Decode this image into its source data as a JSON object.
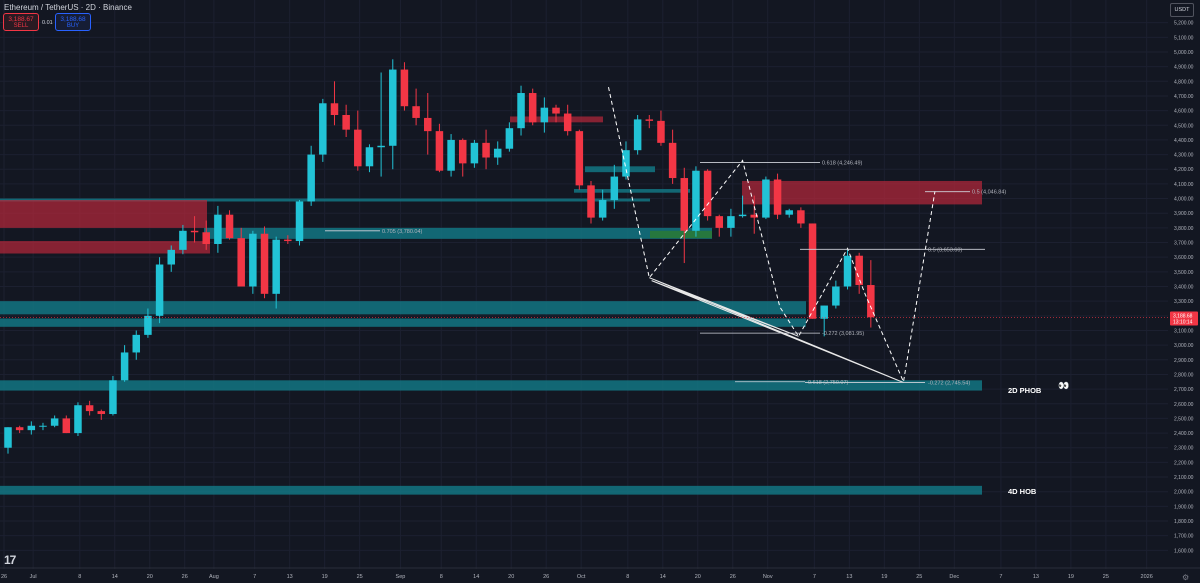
{
  "header": {
    "symbol_line": "Ethereum / TetherUS · 2D · Binance",
    "sell_price": "3,188.67",
    "sell_label": "SELL",
    "spread": "0.01",
    "buy_price": "3,188.68",
    "buy_label": "BUY",
    "currency": "USDT"
  },
  "colors": {
    "background": "#131722",
    "up": "#22c3d6",
    "down": "#f23645",
    "zone_teal": "#137583",
    "zone_red": "#b8283a",
    "zone_green": "#2a7a35"
  },
  "chart_data": {
    "type": "candlestick",
    "ylim": [
      1500,
      5300
    ],
    "y_ticks": [
      1600,
      1700,
      1800,
      1900,
      2000,
      2100,
      2200,
      2300,
      2400,
      2500,
      2600,
      2700,
      2800,
      2900,
      3000,
      3100,
      3200,
      3300,
      3400,
      3500,
      3600,
      3700,
      3800,
      3900,
      4000,
      4100,
      4200,
      4300,
      4400,
      4500,
      4600,
      4700,
      4800,
      4900,
      5000,
      5100,
      5200
    ],
    "x_ticks": [
      {
        "label": "26",
        "slot": 0
      },
      {
        "label": "Jul",
        "slot": 2.5
      },
      {
        "label": "8",
        "slot": 6.5
      },
      {
        "label": "14",
        "slot": 9.5
      },
      {
        "label": "20",
        "slot": 12.5
      },
      {
        "label": "26",
        "slot": 15.5
      },
      {
        "label": "Aug",
        "slot": 18
      },
      {
        "label": "7",
        "slot": 21.5
      },
      {
        "label": "13",
        "slot": 24.5
      },
      {
        "label": "19",
        "slot": 27.5
      },
      {
        "label": "25",
        "slot": 30.5
      },
      {
        "label": "Sep",
        "slot": 34
      },
      {
        "label": "8",
        "slot": 37.5
      },
      {
        "label": "14",
        "slot": 40.5
      },
      {
        "label": "20",
        "slot": 43.5
      },
      {
        "label": "26",
        "slot": 46.5
      },
      {
        "label": "Oct",
        "slot": 49.5
      },
      {
        "label": "8",
        "slot": 53.5
      },
      {
        "label": "14",
        "slot": 56.5
      },
      {
        "label": "20",
        "slot": 59.5
      },
      {
        "label": "26",
        "slot": 62.5
      },
      {
        "label": "Nov",
        "slot": 65.5
      },
      {
        "label": "7",
        "slot": 69.5
      },
      {
        "label": "13",
        "slot": 72.5
      },
      {
        "label": "19",
        "slot": 75.5
      },
      {
        "label": "25",
        "slot": 78.5
      },
      {
        "label": "Dec",
        "slot": 81.5
      },
      {
        "label": "7",
        "slot": 85.5
      },
      {
        "label": "13",
        "slot": 88.5
      },
      {
        "label": "19",
        "slot": 91.5
      },
      {
        "label": "25",
        "slot": 94.5
      },
      {
        "label": "2026",
        "slot": 98
      }
    ],
    "candles": [
      [
        2300,
        2440,
        2260,
        2440
      ],
      [
        2440,
        2450,
        2400,
        2420
      ],
      [
        2420,
        2480,
        2390,
        2450
      ],
      [
        2450,
        2470,
        2420,
        2450
      ],
      [
        2450,
        2520,
        2440,
        2500
      ],
      [
        2500,
        2520,
        2400,
        2400
      ],
      [
        2400,
        2610,
        2380,
        2590
      ],
      [
        2590,
        2620,
        2520,
        2550
      ],
      [
        2550,
        2560,
        2490,
        2530
      ],
      [
        2530,
        2790,
        2520,
        2760
      ],
      [
        2760,
        3000,
        2750,
        2950
      ],
      [
        2950,
        3100,
        2900,
        3070
      ],
      [
        3070,
        3250,
        3050,
        3200
      ],
      [
        3200,
        3600,
        3150,
        3550
      ],
      [
        3550,
        3680,
        3500,
        3650
      ],
      [
        3650,
        3820,
        3620,
        3780
      ],
      [
        3780,
        3880,
        3700,
        3770
      ],
      [
        3770,
        3850,
        3650,
        3690
      ],
      [
        3690,
        3950,
        3630,
        3890
      ],
      [
        3890,
        3920,
        3720,
        3730
      ],
      [
        3730,
        3800,
        3400,
        3400
      ],
      [
        3400,
        3780,
        3350,
        3760
      ],
      [
        3760,
        3810,
        3320,
        3350
      ],
      [
        3350,
        3740,
        3250,
        3720
      ],
      [
        3720,
        3750,
        3690,
        3710
      ],
      [
        3710,
        3990,
        3680,
        3980
      ],
      [
        3980,
        4360,
        3950,
        4300
      ],
      [
        4300,
        4680,
        4250,
        4650
      ],
      [
        4650,
        4800,
        4500,
        4570
      ],
      [
        4570,
        4640,
        4420,
        4470
      ],
      [
        4470,
        4600,
        4190,
        4220
      ],
      [
        4220,
        4370,
        4180,
        4350
      ],
      [
        4350,
        4860,
        4150,
        4360
      ],
      [
        4360,
        4950,
        4200,
        4880
      ],
      [
        4880,
        4930,
        4600,
        4630
      ],
      [
        4630,
        4750,
        4500,
        4550
      ],
      [
        4550,
        4720,
        4300,
        4460
      ],
      [
        4460,
        4510,
        4180,
        4190
      ],
      [
        4190,
        4440,
        4150,
        4400
      ],
      [
        4400,
        4410,
        4150,
        4240
      ],
      [
        4240,
        4400,
        4210,
        4380
      ],
      [
        4380,
        4470,
        4200,
        4280
      ],
      [
        4280,
        4390,
        4230,
        4340
      ],
      [
        4340,
        4520,
        4320,
        4480
      ],
      [
        4480,
        4770,
        4430,
        4720
      ],
      [
        4720,
        4750,
        4500,
        4520
      ],
      [
        4520,
        4690,
        4450,
        4620
      ],
      [
        4620,
        4640,
        4520,
        4580
      ],
      [
        4580,
        4640,
        4430,
        4460
      ],
      [
        4460,
        4470,
        4060,
        4090
      ],
      [
        4090,
        4120,
        3830,
        3870
      ],
      [
        3870,
        4060,
        3850,
        3990
      ],
      [
        3990,
        4230,
        3930,
        4150
      ],
      [
        4150,
        4390,
        4130,
        4330
      ],
      [
        4330,
        4570,
        4300,
        4540
      ],
      [
        4540,
        4570,
        4480,
        4530
      ],
      [
        4530,
        4600,
        4360,
        4380
      ],
      [
        4380,
        4470,
        4100,
        4140
      ],
      [
        4140,
        4210,
        3560,
        3780
      ],
      [
        3780,
        4220,
        3740,
        4190
      ],
      [
        4190,
        4200,
        3850,
        3880
      ],
      [
        3880,
        3890,
        3740,
        3800
      ],
      [
        3800,
        3930,
        3740,
        3880
      ],
      [
        3880,
        4020,
        3870,
        3890
      ],
      [
        3890,
        4020,
        3760,
        3870
      ],
      [
        3870,
        4150,
        3860,
        4130
      ],
      [
        4130,
        4170,
        3860,
        3890
      ],
      [
        3890,
        3930,
        3870,
        3920
      ],
      [
        3920,
        3940,
        3800,
        3830
      ],
      [
        3830,
        3830,
        3180,
        3180
      ],
      [
        3180,
        3270,
        3060,
        3270
      ],
      [
        3270,
        3440,
        3250,
        3400
      ],
      [
        3400,
        3650,
        3380,
        3610
      ],
      [
        3610,
        3630,
        3350,
        3410
      ],
      [
        3410,
        3580,
        3120,
        3190
      ]
    ],
    "zones": [
      {
        "type": "teal",
        "from": 3125,
        "to": 3182
      },
      {
        "type": "teal",
        "from": 3210,
        "to": 3300
      },
      {
        "type": "teal",
        "from": 2690,
        "to": 2760
      },
      {
        "type": "teal",
        "from": 1980,
        "to": 2040
      },
      {
        "type": "teal",
        "from": 3725,
        "to": 3800
      },
      {
        "type": "teal",
        "from": 3980,
        "to": 4000
      },
      {
        "type": "teal",
        "from": 4040,
        "to": 4065
      },
      {
        "type": "teal",
        "from": 4180,
        "to": 4220
      },
      {
        "type": "red",
        "from": 3800,
        "to": 3990
      },
      {
        "type": "red",
        "from": 3625,
        "to": 3710
      },
      {
        "type": "red",
        "from": 3960,
        "to": 4120
      },
      {
        "type": "red",
        "from": 4520,
        "to": 4560
      },
      {
        "type": "green",
        "from": 3730,
        "to": 3780
      }
    ],
    "fib_levels": [
      {
        "label": "0.705 (3,780.04)",
        "value": 3780.04
      },
      {
        "label": "0.618 (4,246.49)",
        "value": 4246.49
      },
      {
        "label": "0.5 (4,046.84)",
        "value": 4046.84
      },
      {
        "label": "0.5 (3,653.60)",
        "value": 3653.6
      },
      {
        "label": "-0.272 (3,081.95)",
        "value": 3081.95
      },
      {
        "label": "0.618 (2,750.07)",
        "value": 2750.07
      },
      {
        "label": "-0.272 (2,745.54)",
        "value": 2745.54
      }
    ],
    "zone_labels": [
      "2D PHOB",
      "4D HOB"
    ],
    "emoji": "👀",
    "last_price": {
      "value": 3188.68,
      "label": "3,188.68",
      "countdown": "13:10:14"
    },
    "dashed_path": [
      {
        "slot": 51.5,
        "value": 4760
      },
      {
        "slot": 55,
        "value": 3460
      },
      {
        "slot": 63,
        "value": 4260
      },
      {
        "slot": 66.2,
        "value": 3260
      },
      {
        "slot": 67.8,
        "value": 3060
      },
      {
        "slot": 72,
        "value": 3660
      },
      {
        "slot": 73.5,
        "value": 3350
      },
      {
        "slot": 76.8,
        "value": 2750
      },
      {
        "slot": 79.5,
        "value": 4050
      }
    ],
    "wedge": [
      {
        "slot": 55,
        "value": 3460
      },
      {
        "slot": 76.8,
        "value": 2745
      },
      {
        "slot": 55.2,
        "value": 3440
      }
    ]
  }
}
